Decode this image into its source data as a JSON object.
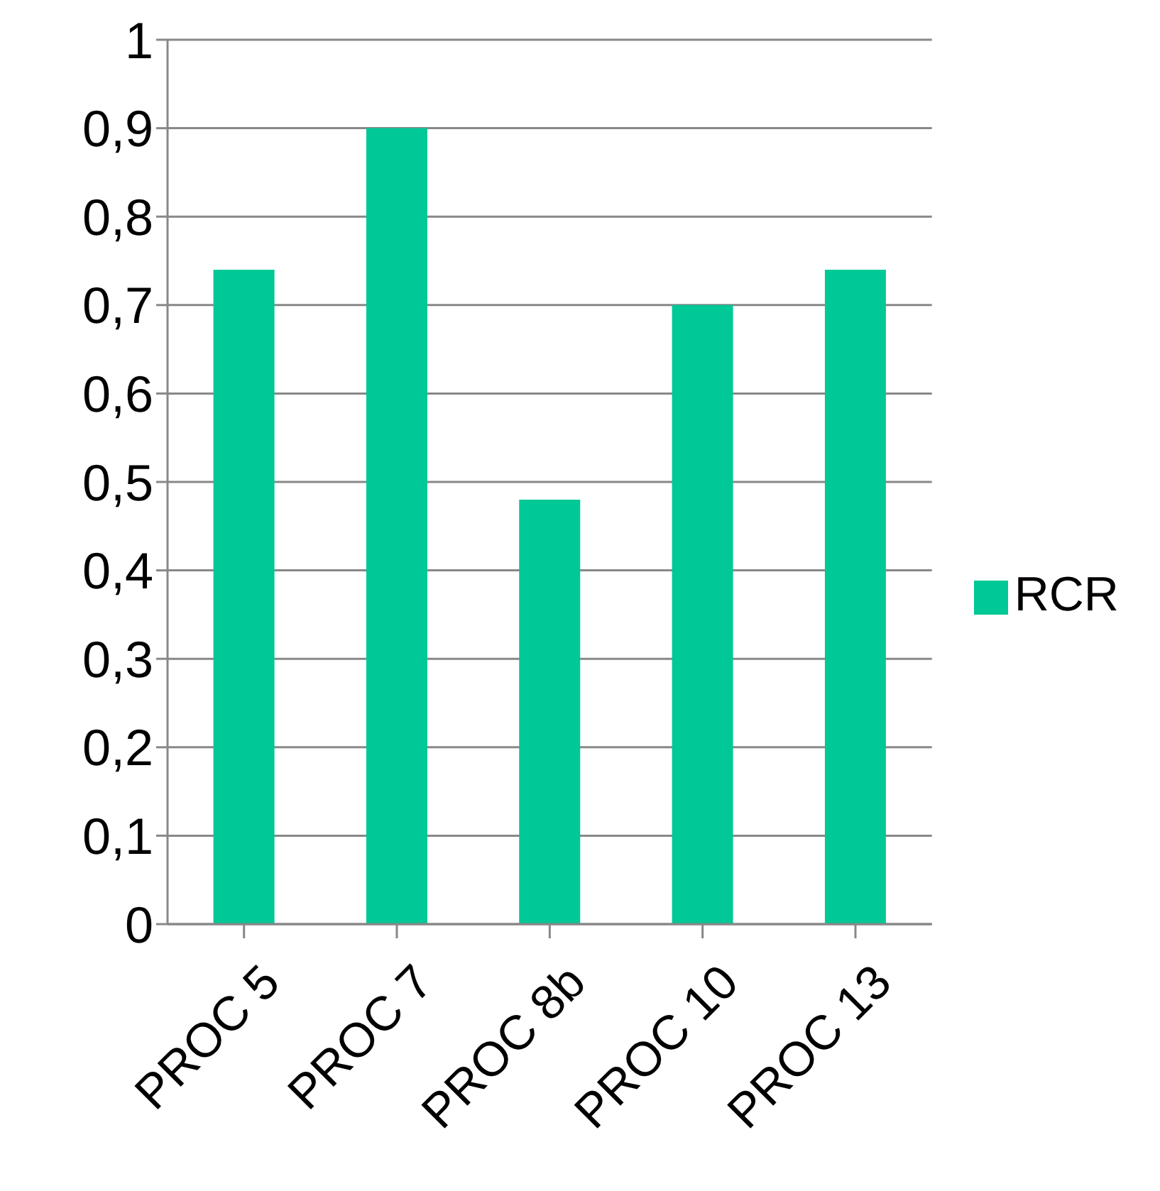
{
  "chart_data": {
    "type": "bar",
    "categories": [
      "PROC 5",
      "PROC 7",
      "PROC 8b",
      "PROC 10",
      "PROC 13"
    ],
    "series": [
      {
        "name": "RCR",
        "color": "#00c896",
        "values": [
          0.74,
          0.9,
          0.48,
          0.7,
          0.74
        ]
      }
    ],
    "ylim": [
      0,
      1
    ],
    "yticks": [
      0,
      {
        "value": 0.1,
        "label": "0,1"
      },
      {
        "value": 0.2,
        "label": "0,2"
      },
      {
        "value": 0.3,
        "label": "0,3"
      },
      {
        "value": 0.4,
        "label": "0,4"
      },
      {
        "value": 0.5,
        "label": "0,5"
      },
      {
        "value": 0.6,
        "label": "0,6"
      },
      {
        "value": 0.7,
        "label": "0,7"
      },
      {
        "value": 0.8,
        "label": "0,8"
      },
      {
        "value": 0.9,
        "label": "0,9"
      },
      1
    ],
    "grid": "y",
    "legend": "right"
  }
}
